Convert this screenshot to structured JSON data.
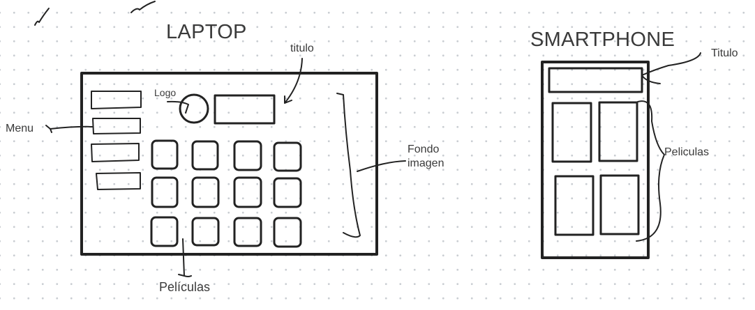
{
  "laptop": {
    "title": "LAPTOP",
    "labels": {
      "titulo": "titulo",
      "logo": "Logo",
      "menu": "Menu",
      "fondo_line1": "Fondo",
      "fondo_line2": "imagen",
      "peliculas": "Películas"
    }
  },
  "smartphone": {
    "title": "SMARTPHONE",
    "labels": {
      "titulo": "Titulo",
      "peliculas": "Peliculas"
    }
  }
}
